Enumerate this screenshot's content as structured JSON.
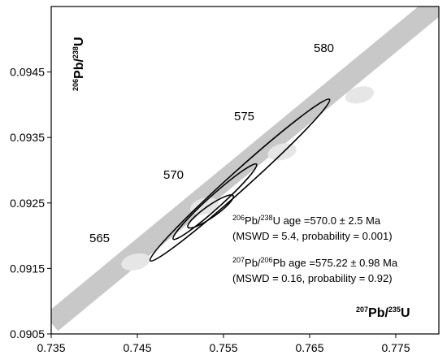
{
  "chart_data": {
    "type": "scatter",
    "subtype": "concordia",
    "xlabel": {
      "sup": "207",
      "main": "Pb/",
      "sup2": "235",
      "main2": "U"
    },
    "ylabel": {
      "sup": "206",
      "main": "Pb/",
      "sup2": "238",
      "main2": "U"
    },
    "xlim": [
      0.735,
      0.78
    ],
    "ylim": [
      0.0905,
      0.0955
    ],
    "x_ticks": [
      "0.735",
      "0.745",
      "0.755",
      "0.765",
      "0.775"
    ],
    "y_ticks": [
      "0.0905",
      "0.0915",
      "0.0925",
      "0.0935",
      "0.0945"
    ],
    "grid": false,
    "colors": {
      "concordia_band": "#c8c8c8",
      "age_marker": "#e6e6e6",
      "ellipse_stroke": "#000000"
    },
    "concordia_band": {
      "endpoints": [
        {
          "x": 0.735,
          "y": 0.09067
        },
        {
          "x": 0.78,
          "y": 0.09555
        }
      ]
    },
    "age_markers": [
      {
        "age": "565",
        "x": 0.7448,
        "y": 0.0916
      },
      {
        "age": "570",
        "x": 0.7528,
        "y": 0.09245
      },
      {
        "age": "575",
        "x": 0.7618,
        "y": 0.09328
      },
      {
        "age": "580",
        "x": 0.7708,
        "y": 0.09415
      }
    ],
    "error_ellipses": [
      {
        "cx": 0.7569,
        "cy": 0.09285,
        "rx": 0.014,
        "ry": 0.00014,
        "angle_deg": -42
      },
      {
        "cx": 0.754,
        "cy": 0.09252,
        "rx": 0.0065,
        "ry": 0.0001,
        "angle_deg": -42
      },
      {
        "cx": 0.7535,
        "cy": 0.09237,
        "rx": 0.0032,
        "ry": 9e-05,
        "angle_deg": -35
      }
    ],
    "annotations": {
      "line1": {
        "sup1": "206",
        "t1": "Pb/",
        "sup2": "238",
        "t2": "U age =570.0 ± 2.5 Ma"
      },
      "line2": "(MSWD = 5.4, probability = 0.001)",
      "line3": {
        "sup1": "207",
        "t1": "Pb/",
        "sup2": "206",
        "t2": "Pb age =575.22 ± 0.98 Ma"
      },
      "line4": "(MSWD = 0.16, probability = 0.92)"
    }
  }
}
